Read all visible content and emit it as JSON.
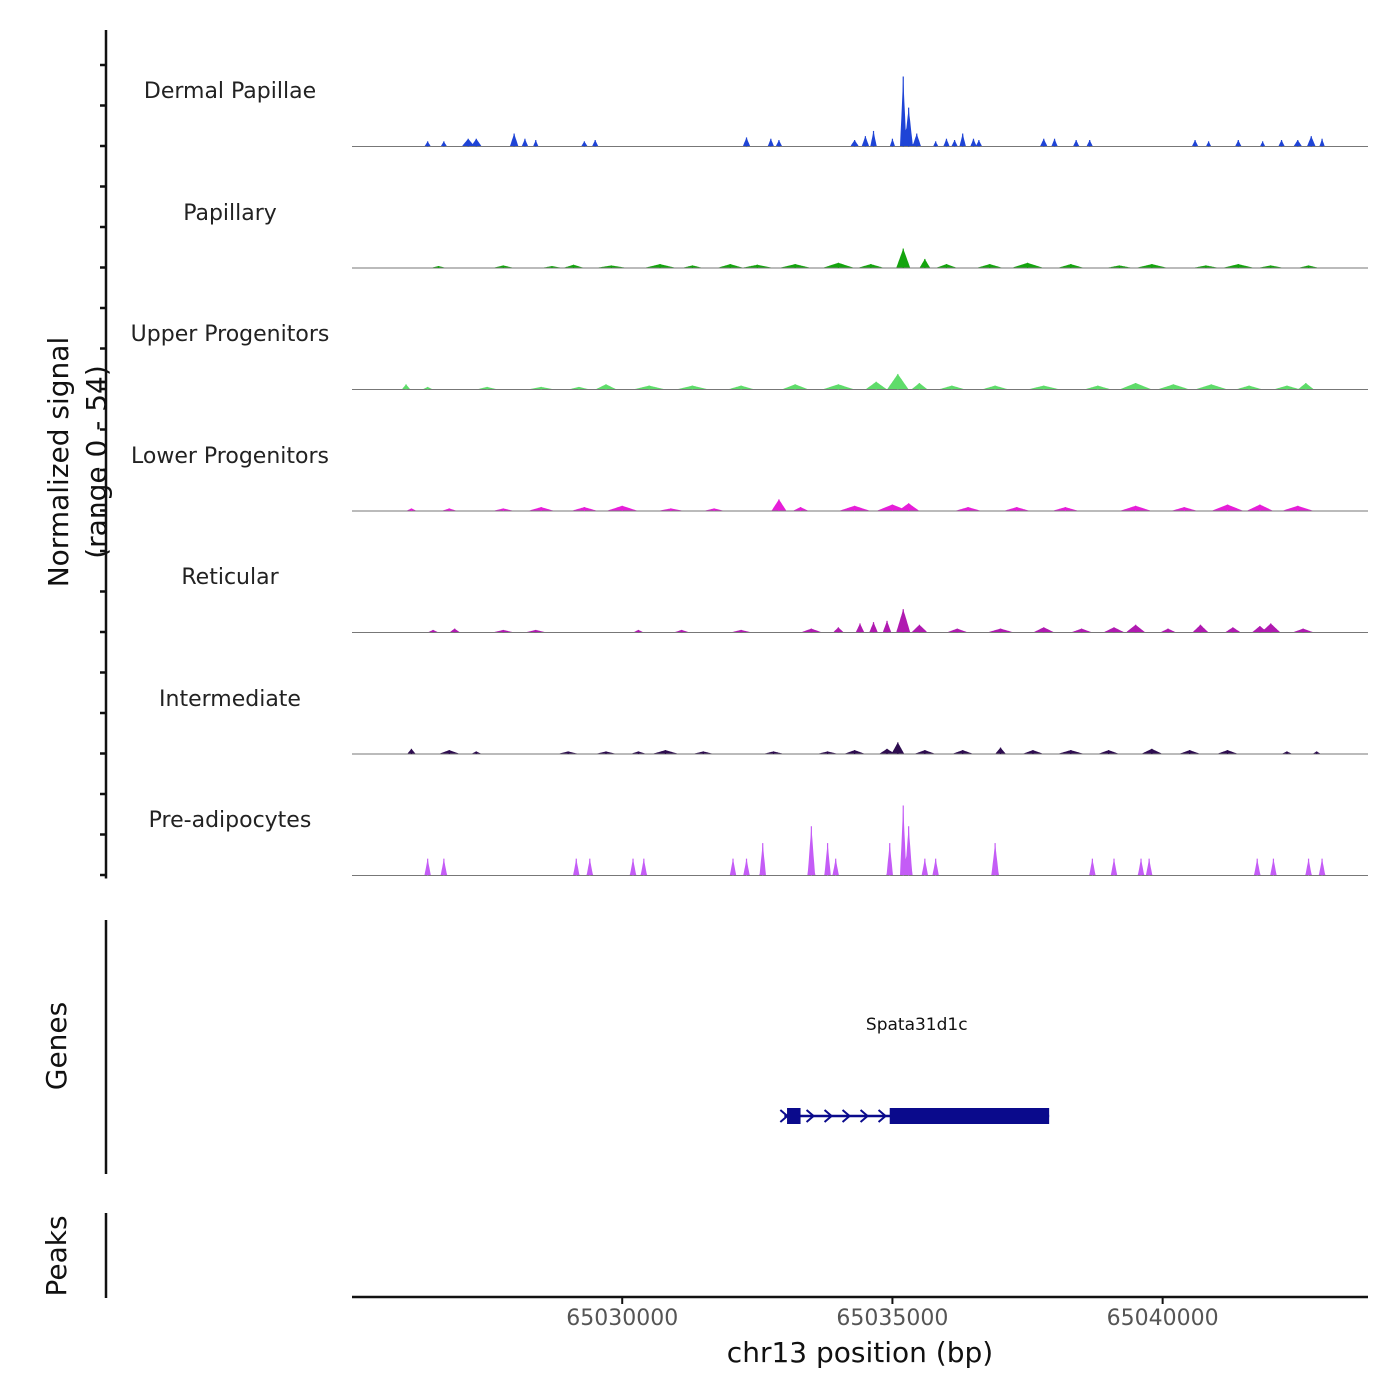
{
  "chart_data": {
    "type": "area",
    "title": "",
    "chromosome": "chr13",
    "xlabel": "chr13 position (bp)",
    "ylabel_line1": "Normalized signal",
    "ylabel_line2": "(range 0 - 54)",
    "xlim": [
      65025000,
      65043800
    ],
    "ylim": [
      0,
      54
    ],
    "xticks": [
      65030000,
      65035000,
      65040000
    ],
    "xtick_labels": [
      "65030000",
      "65035000",
      "65040000"
    ],
    "series": [
      {
        "name": "Dermal Papillae",
        "color": "#1f44d6",
        "peaks": [
          [
            65026400,
            4,
            60
          ],
          [
            65026700,
            4,
            60
          ],
          [
            65027150,
            6,
            120
          ],
          [
            65027300,
            6,
            100
          ],
          [
            65028000,
            10,
            80
          ],
          [
            65028200,
            6,
            60
          ],
          [
            65028400,
            5,
            50
          ],
          [
            65029300,
            4,
            60
          ],
          [
            65029500,
            5,
            60
          ],
          [
            65032300,
            7,
            70
          ],
          [
            65032750,
            6,
            60
          ],
          [
            65032900,
            5,
            60
          ],
          [
            65034300,
            5,
            80
          ],
          [
            65034500,
            8,
            70
          ],
          [
            65034650,
            12,
            60
          ],
          [
            65035000,
            6,
            50
          ],
          [
            65035200,
            54,
            60
          ],
          [
            65035300,
            30,
            80
          ],
          [
            65035450,
            10,
            80
          ],
          [
            65035800,
            4,
            50
          ],
          [
            65036000,
            6,
            60
          ],
          [
            65036150,
            5,
            60
          ],
          [
            65036300,
            10,
            60
          ],
          [
            65036500,
            6,
            60
          ],
          [
            65036600,
            5,
            60
          ],
          [
            65037800,
            6,
            70
          ],
          [
            65038000,
            6,
            60
          ],
          [
            65038400,
            5,
            60
          ],
          [
            65038650,
            5,
            60
          ],
          [
            65040600,
            5,
            60
          ],
          [
            65040850,
            4,
            50
          ],
          [
            65041400,
            5,
            60
          ],
          [
            65041850,
            4,
            50
          ],
          [
            65042200,
            5,
            60
          ],
          [
            65042500,
            5,
            80
          ],
          [
            65042750,
            8,
            80
          ],
          [
            65042950,
            6,
            50
          ]
        ]
      },
      {
        "name": "Papillary",
        "color": "#14a40e",
        "peaks": [
          [
            65026600,
            1.5,
            150
          ],
          [
            65027800,
            2,
            200
          ],
          [
            65028700,
            1.5,
            200
          ],
          [
            65029100,
            2.5,
            200
          ],
          [
            65029800,
            2,
            300
          ],
          [
            65030700,
            3,
            300
          ],
          [
            65031300,
            2,
            200
          ],
          [
            65032000,
            3,
            250
          ],
          [
            65032500,
            2.5,
            300
          ],
          [
            65033200,
            3,
            300
          ],
          [
            65034000,
            4,
            300
          ],
          [
            65034600,
            3,
            250
          ],
          [
            65035200,
            15,
            130
          ],
          [
            65035600,
            7,
            100
          ],
          [
            65036000,
            3,
            200
          ],
          [
            65036800,
            3,
            250
          ],
          [
            65037500,
            4,
            300
          ],
          [
            65038300,
            3,
            250
          ],
          [
            65039200,
            2,
            250
          ],
          [
            65039800,
            3,
            300
          ],
          [
            65040800,
            2,
            250
          ],
          [
            65041400,
            3,
            300
          ],
          [
            65042000,
            2,
            250
          ],
          [
            65042700,
            2,
            200
          ]
        ]
      },
      {
        "name": "Upper Progenitors",
        "color": "#5fdc6a",
        "peaks": [
          [
            65026000,
            4,
            80
          ],
          [
            65026400,
            2,
            100
          ],
          [
            65027500,
            2,
            200
          ],
          [
            65028500,
            2,
            250
          ],
          [
            65029200,
            2,
            200
          ],
          [
            65029700,
            4,
            200
          ],
          [
            65030500,
            3,
            300
          ],
          [
            65031300,
            3,
            300
          ],
          [
            65032200,
            3,
            250
          ],
          [
            65033200,
            4,
            250
          ],
          [
            65034000,
            4,
            300
          ],
          [
            65034700,
            6,
            200
          ],
          [
            65035100,
            12,
            200
          ],
          [
            65035500,
            5,
            150
          ],
          [
            65036100,
            3,
            250
          ],
          [
            65036900,
            3,
            250
          ],
          [
            65037800,
            3,
            300
          ],
          [
            65038800,
            3,
            250
          ],
          [
            65039500,
            5,
            300
          ],
          [
            65040200,
            4,
            300
          ],
          [
            65040900,
            4,
            300
          ],
          [
            65041600,
            3,
            250
          ],
          [
            65042300,
            3,
            250
          ],
          [
            65042650,
            5,
            150
          ]
        ]
      },
      {
        "name": "Lower Progenitors",
        "color": "#e61ed8",
        "peaks": [
          [
            65026100,
            2,
            100
          ],
          [
            65026800,
            2,
            150
          ],
          [
            65027800,
            2,
            200
          ],
          [
            65028500,
            3,
            250
          ],
          [
            65029300,
            3,
            250
          ],
          [
            65030000,
            4,
            300
          ],
          [
            65030900,
            2,
            250
          ],
          [
            65031700,
            2,
            200
          ],
          [
            65032900,
            9,
            140
          ],
          [
            65033300,
            3,
            150
          ],
          [
            65034300,
            4,
            300
          ],
          [
            65035000,
            5,
            300
          ],
          [
            65035300,
            6,
            200
          ],
          [
            65036400,
            3,
            250
          ],
          [
            65037300,
            3,
            250
          ],
          [
            65038200,
            3,
            250
          ],
          [
            65039500,
            4,
            300
          ],
          [
            65040400,
            3,
            250
          ],
          [
            65041200,
            5,
            300
          ],
          [
            65041800,
            5,
            250
          ],
          [
            65042500,
            4,
            300
          ]
        ]
      },
      {
        "name": "Reticular",
        "color": "#b01ab0",
        "peaks": [
          [
            65026500,
            2,
            100
          ],
          [
            65026900,
            3,
            100
          ],
          [
            65027800,
            2,
            200
          ],
          [
            65028400,
            2,
            200
          ],
          [
            65030300,
            2,
            100
          ],
          [
            65031100,
            2,
            150
          ],
          [
            65032200,
            2,
            200
          ],
          [
            65033500,
            3,
            200
          ],
          [
            65034000,
            4,
            100
          ],
          [
            65034400,
            7,
            80
          ],
          [
            65034650,
            8,
            80
          ],
          [
            65034900,
            9,
            80
          ],
          [
            65035200,
            18,
            130
          ],
          [
            65035500,
            6,
            150
          ],
          [
            65036200,
            3,
            200
          ],
          [
            65037000,
            3,
            250
          ],
          [
            65037800,
            4,
            200
          ],
          [
            65038500,
            3,
            200
          ],
          [
            65039100,
            4,
            200
          ],
          [
            65039500,
            6,
            180
          ],
          [
            65040100,
            3,
            150
          ],
          [
            65040700,
            6,
            150
          ],
          [
            65041300,
            4,
            150
          ],
          [
            65041800,
            5,
            150
          ],
          [
            65042000,
            7,
            180
          ],
          [
            65042600,
            3,
            200
          ]
        ]
      },
      {
        "name": "Intermediate",
        "color": "#2e0d50",
        "peaks": [
          [
            65026100,
            4,
            80
          ],
          [
            65026800,
            3,
            200
          ],
          [
            65027300,
            2,
            100
          ],
          [
            65029000,
            2,
            200
          ],
          [
            65029700,
            2,
            200
          ],
          [
            65030300,
            2,
            150
          ],
          [
            65030800,
            3,
            250
          ],
          [
            65031500,
            2,
            200
          ],
          [
            65032800,
            2,
            200
          ],
          [
            65033800,
            2,
            200
          ],
          [
            65034300,
            3,
            200
          ],
          [
            65034900,
            4,
            150
          ],
          [
            65035100,
            9,
            120
          ],
          [
            65035600,
            3,
            200
          ],
          [
            65036300,
            3,
            200
          ],
          [
            65037000,
            5,
            100
          ],
          [
            65037600,
            3,
            200
          ],
          [
            65038300,
            3,
            250
          ],
          [
            65039000,
            3,
            200
          ],
          [
            65039800,
            4,
            200
          ],
          [
            65040500,
            3,
            200
          ],
          [
            65041200,
            3,
            200
          ],
          [
            65042300,
            2,
            100
          ],
          [
            65042850,
            2,
            80
          ]
        ]
      },
      {
        "name": "Pre-adipocytes",
        "color": "#c45cf6",
        "peaks": [
          [
            65026400,
            13,
            60
          ],
          [
            65026700,
            13,
            60
          ],
          [
            65029150,
            13,
            60
          ],
          [
            65029400,
            13,
            60
          ],
          [
            65030200,
            13,
            60
          ],
          [
            65030400,
            13,
            60
          ],
          [
            65032050,
            13,
            60
          ],
          [
            65032300,
            13,
            60
          ],
          [
            65032600,
            25,
            60
          ],
          [
            65033500,
            38,
            70
          ],
          [
            65033800,
            25,
            60
          ],
          [
            65033950,
            13,
            60
          ],
          [
            65034950,
            25,
            60
          ],
          [
            65035200,
            54,
            60
          ],
          [
            65035300,
            38,
            70
          ],
          [
            65035600,
            13,
            60
          ],
          [
            65035800,
            13,
            60
          ],
          [
            65036900,
            25,
            70
          ],
          [
            65038700,
            13,
            60
          ],
          [
            65039100,
            13,
            60
          ],
          [
            65039600,
            13,
            60
          ],
          [
            65039750,
            13,
            60
          ],
          [
            65041750,
            13,
            60
          ],
          [
            65042050,
            13,
            60
          ],
          [
            65042700,
            13,
            60
          ],
          [
            65042950,
            13,
            60
          ]
        ]
      }
    ]
  },
  "genes_panel": {
    "title": "Genes",
    "genes": [
      {
        "name": "Spata31d1c",
        "start": 65033000,
        "end": 65037900,
        "strand": "+",
        "exons": [
          [
            65033050,
            65033300
          ],
          [
            65034950,
            65037900
          ]
        ],
        "color": "#0a0a8c"
      }
    ]
  },
  "peaks_panel": {
    "title": "Peaks",
    "peaks": []
  }
}
